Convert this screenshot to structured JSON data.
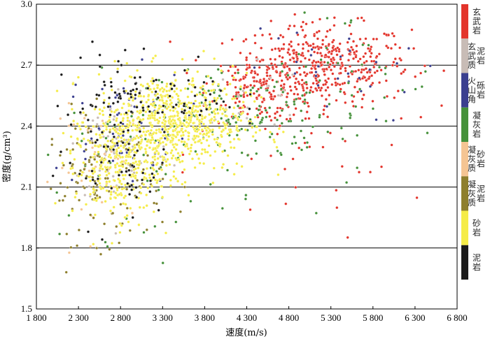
{
  "chart_data": {
    "type": "scatter",
    "xlabel": "速度(m/s)",
    "ylabel": "密度(g/cm³)",
    "xlim": [
      1800,
      6800
    ],
    "ylim": [
      1.5,
      3.0
    ],
    "x_ticks": [
      "1 800",
      "2 300",
      "2 800",
      "3 300",
      "3 800",
      "4 300",
      "4 800",
      "5 300",
      "5 800",
      "6 300",
      "6 800"
    ],
    "y_ticks": [
      "1.5",
      "1.8",
      "2.1",
      "2.4",
      "2.7",
      "3.0"
    ],
    "grid": "horizontal",
    "legend_placement": "right",
    "series": [
      {
        "name": "玄武岩",
        "color": "#e3342b",
        "clusters": [
          {
            "x": 5200,
            "y": 2.7,
            "sx": 520,
            "sy": 0.1,
            "n": 420
          },
          {
            "x": 4500,
            "y": 2.58,
            "sx": 320,
            "sy": 0.08,
            "n": 150
          },
          {
            "x": 5000,
            "y": 2.25,
            "sx": 700,
            "sy": 0.22,
            "n": 40
          }
        ]
      },
      {
        "name": "玄武质泥岩",
        "color": "#c8bcb6",
        "clusters": [
          {
            "x": 2800,
            "y": 2.3,
            "sx": 300,
            "sy": 0.15,
            "n": 70
          },
          {
            "x": 4200,
            "y": 2.55,
            "sx": 400,
            "sy": 0.1,
            "n": 25
          }
        ]
      },
      {
        "name": "火山角砾岩",
        "color": "#3b3f8f",
        "clusters": [
          {
            "x": 2800,
            "y": 2.4,
            "sx": 400,
            "sy": 0.14,
            "n": 60
          },
          {
            "x": 5300,
            "y": 2.65,
            "sx": 500,
            "sy": 0.12,
            "n": 30
          }
        ]
      },
      {
        "name": "凝灰岩",
        "color": "#45913a",
        "clusters": [
          {
            "x": 4300,
            "y": 2.45,
            "sx": 500,
            "sy": 0.12,
            "n": 120
          },
          {
            "x": 3000,
            "y": 2.25,
            "sx": 600,
            "sy": 0.2,
            "n": 60
          },
          {
            "x": 5400,
            "y": 2.6,
            "sx": 600,
            "sy": 0.2,
            "n": 50
          }
        ]
      },
      {
        "name": "凝灰质砂岩",
        "color": "#f5c593",
        "clusters": [
          {
            "x": 2600,
            "y": 2.2,
            "sx": 300,
            "sy": 0.15,
            "n": 40
          }
        ]
      },
      {
        "name": "凝灰质泥岩",
        "color": "#8e7f2d",
        "clusters": [
          {
            "x": 2600,
            "y": 2.15,
            "sx": 350,
            "sy": 0.16,
            "n": 140
          }
        ]
      },
      {
        "name": "砂岩",
        "color": "#f5ec48",
        "clusters": [
          {
            "x": 3400,
            "y": 2.42,
            "sx": 450,
            "sy": 0.12,
            "n": 750
          },
          {
            "x": 2750,
            "y": 2.18,
            "sx": 260,
            "sy": 0.12,
            "n": 250
          }
        ]
      },
      {
        "name": "泥岩",
        "color": "#1a1a1a",
        "clusters": [
          {
            "x": 2700,
            "y": 2.35,
            "sx": 350,
            "sy": 0.22,
            "n": 110
          },
          {
            "x": 3500,
            "y": 2.55,
            "sx": 350,
            "sy": 0.08,
            "n": 50
          }
        ]
      }
    ]
  }
}
